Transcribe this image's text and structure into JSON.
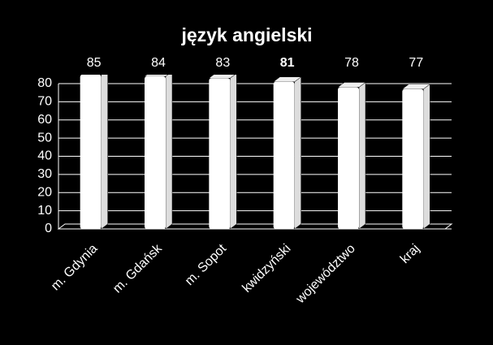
{
  "chart_data": {
    "type": "bar3d",
    "title": "język angielski",
    "categories": [
      "m. Gdynia",
      "m. Gdańsk",
      "m. Sopot",
      "kwidzyński",
      "województwo",
      "kraj"
    ],
    "values": [
      85,
      84,
      83,
      81,
      78,
      77
    ],
    "color": "#ffffff",
    "ylim": [
      0,
      80
    ],
    "yticks": [
      0,
      10,
      20,
      30,
      40,
      50,
      60,
      70,
      80
    ],
    "grid": true
  }
}
